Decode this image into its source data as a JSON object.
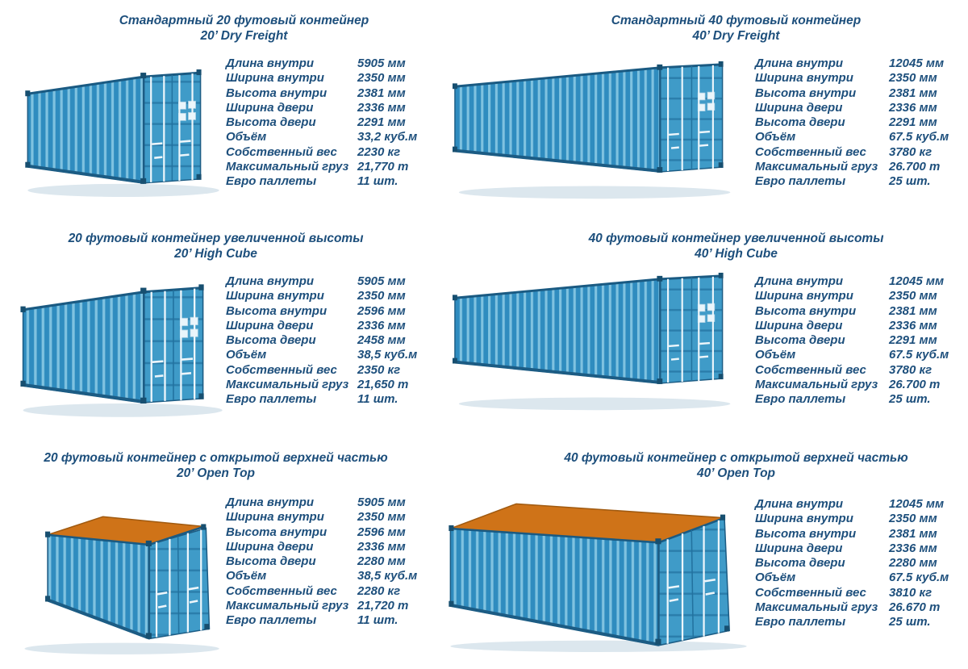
{
  "colors": {
    "background": "#ffffff",
    "text": "#1d4f7c",
    "container_body": "#2f8cbf",
    "container_rib_highlight": "#7fc2e0",
    "container_frame": "#1c5c84",
    "container_door": "#3f9bc8",
    "open_top_tarp": "#cf7318"
  },
  "panels": [
    {
      "title_ru": "Стандартный 20 футовый контейнер",
      "title_en": "20’ Dry Freight",
      "illustration": {
        "icon": "container-20ft-dry-illustration",
        "variant": "20ft-closed"
      },
      "specs": [
        {
          "label": "Длина внутри",
          "value": "5905 мм"
        },
        {
          "label": "Ширина внутри",
          "value": "2350 мм"
        },
        {
          "label": "Высота внутри",
          "value": "2381 мм"
        },
        {
          "label": "Ширина двери",
          "value": "2336 мм"
        },
        {
          "label": "Высота двери",
          "value": "2291 мм"
        },
        {
          "label": "Объём",
          "value": "33,2 куб.м"
        },
        {
          "label": "Собственный вес",
          "value": "2230 кг"
        },
        {
          "label": "Максимальный груз",
          "value": "21,770 т"
        },
        {
          "label": "Евро паллеты",
          "value": "11 шт."
        }
      ]
    },
    {
      "title_ru": "Стандартный 40 футовый контейнер",
      "title_en": "40’ Dry Freight",
      "illustration": {
        "icon": "container-40ft-dry-illustration",
        "variant": "40ft-closed"
      },
      "specs": [
        {
          "label": "Длина внутри",
          "value": "12045 мм"
        },
        {
          "label": "Ширина внутри",
          "value": "2350 мм"
        },
        {
          "label": "Высота внутри",
          "value": "2381 мм"
        },
        {
          "label": "Ширина двери",
          "value": "2336 мм"
        },
        {
          "label": "Высота двери",
          "value": "2291 мм"
        },
        {
          "label": "Объём",
          "value": "67.5 куб.м"
        },
        {
          "label": "Собственный вес",
          "value": "3780 кг"
        },
        {
          "label": "Максимальный груз",
          "value": "26.700 т"
        },
        {
          "label": "Евро паллеты",
          "value": "25 шт."
        }
      ]
    },
    {
      "title_ru": "20 футовый контейнер увеличенной высоты",
      "title_en": "20’ High Cube",
      "illustration": {
        "icon": "container-20ft-high-cube-illustration",
        "variant": "20ft-closed"
      },
      "specs": [
        {
          "label": "Длина внутри",
          "value": "5905 мм"
        },
        {
          "label": "Ширина внутри",
          "value": "2350 мм"
        },
        {
          "label": "Высота внутри",
          "value": "2596 мм"
        },
        {
          "label": "Ширина двери",
          "value": "2336 мм"
        },
        {
          "label": "Высота двери",
          "value": "2458 мм"
        },
        {
          "label": "Объём",
          "value": "38,5 куб.м"
        },
        {
          "label": "Собственный вес",
          "value": "2350 кг"
        },
        {
          "label": "Максимальный груз",
          "value": "21,650 т"
        },
        {
          "label": "Евро паллеты",
          "value": "11 шт."
        }
      ]
    },
    {
      "title_ru": "40 футовый контейнер увеличенной высоты",
      "title_en": "40’ High Cube",
      "illustration": {
        "icon": "container-40ft-high-cube-illustration",
        "variant": "40ft-closed"
      },
      "specs": [
        {
          "label": "Длина внутри",
          "value": "12045 мм"
        },
        {
          "label": "Ширина внутри",
          "value": "2350 мм"
        },
        {
          "label": "Высота внутри",
          "value": "2381 мм"
        },
        {
          "label": "Ширина двери",
          "value": "2336 мм"
        },
        {
          "label": "Высота двери",
          "value": "2291 мм"
        },
        {
          "label": "Объём",
          "value": "67.5 куб.м"
        },
        {
          "label": "Собственный вес",
          "value": "3780 кг"
        },
        {
          "label": "Максимальный груз",
          "value": "26.700 т"
        },
        {
          "label": "Евро паллеты",
          "value": "25 шт."
        }
      ]
    },
    {
      "title_ru": "20 футовый контейнер с открытой верхней частью",
      "title_en": "20’ Open Top",
      "illustration": {
        "icon": "container-20ft-open-top-illustration",
        "variant": "20ft-open-top"
      },
      "specs": [
        {
          "label": "Длина внутри",
          "value": "5905 мм"
        },
        {
          "label": "Ширина внутри",
          "value": "2350 мм"
        },
        {
          "label": "Высота внутри",
          "value": "2596 мм"
        },
        {
          "label": "Ширина двери",
          "value": "2336 мм"
        },
        {
          "label": "Высота двери",
          "value": "2280 мм"
        },
        {
          "label": "Объём",
          "value": "38,5 куб.м"
        },
        {
          "label": "Собственный вес",
          "value": "2280 кг"
        },
        {
          "label": "Максимальный груз",
          "value": "21,720 т"
        },
        {
          "label": "Евро паллеты",
          "value": "11 шт."
        }
      ]
    },
    {
      "title_ru": "40 футовый контейнер с открытой верхней частью",
      "title_en": "40’ Open Top",
      "illustration": {
        "icon": "container-40ft-open-top-illustration",
        "variant": "40ft-open-top"
      },
      "specs": [
        {
          "label": "Длина внутри",
          "value": "12045 мм"
        },
        {
          "label": "Ширина внутри",
          "value": "2350 мм"
        },
        {
          "label": "Высота внутри",
          "value": "2381 мм"
        },
        {
          "label": "Ширина двери",
          "value": "2336 мм"
        },
        {
          "label": "Высота двери",
          "value": "2280 мм"
        },
        {
          "label": "Объём",
          "value": "67.5 куб.м"
        },
        {
          "label": "Собственный вес",
          "value": "3810 кг"
        },
        {
          "label": "Максимальный груз",
          "value": "26.670 т"
        },
        {
          "label": "Евро паллеты",
          "value": "25 шт."
        }
      ]
    }
  ]
}
